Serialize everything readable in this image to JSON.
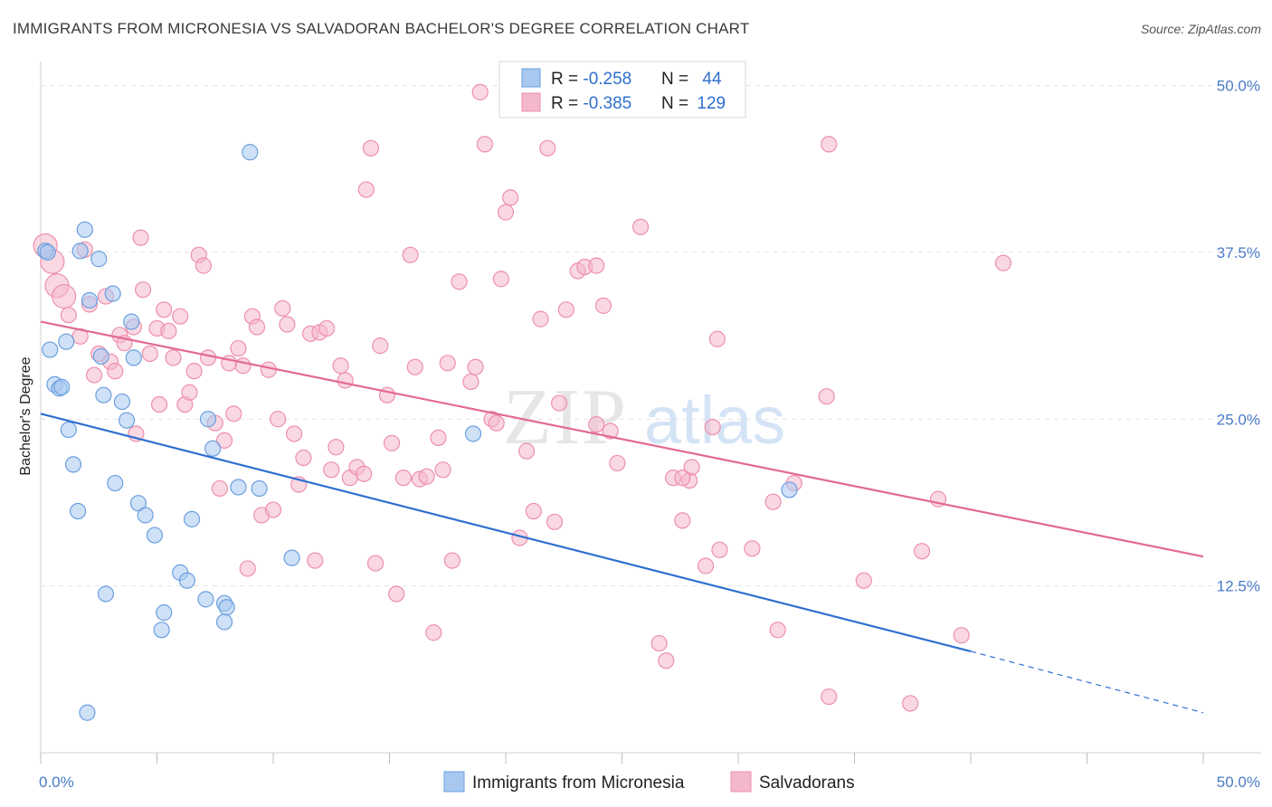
{
  "header": {
    "title": "IMMIGRANTS FROM MICRONESIA VS SALVADORAN BACHELOR'S DEGREE CORRELATION CHART",
    "source": "Source: ZipAtlas.com"
  },
  "watermark": {
    "zip": "ZIP",
    "atlas": "atlas"
  },
  "legend_top": {
    "rows": [
      {
        "r_label": "R = ",
        "r_value": "-0.258",
        "n_label": "N = ",
        "n_value": "44",
        "color": "#a8c8f0"
      },
      {
        "r_label": "R = ",
        "r_value": "-0.385",
        "n_label": "N = ",
        "n_value": "129",
        "color": "#f4b8cb"
      }
    ]
  },
  "legend_bottom": {
    "items": [
      {
        "label": "Immigrants from Micronesia",
        "color": "#a8c8f0"
      },
      {
        "label": "Salvadorans",
        "color": "#f4b8cb"
      }
    ]
  },
  "chart_data": {
    "type": "scatter",
    "title": "IMMIGRANTS FROM MICRONESIA VS SALVADORAN BACHELOR'S DEGREE CORRELATION CHART",
    "xlabel": "",
    "ylabel": "Bachelor's Degree",
    "xlim": [
      0,
      50
    ],
    "ylim": [
      0,
      52
    ],
    "x_tick_labels": [
      "0.0%",
      "50.0%"
    ],
    "y_ticks": [
      12.5,
      25.0,
      37.5,
      50.0
    ],
    "y_tick_labels": [
      "12.5%",
      "25.0%",
      "37.5%",
      "50.0%"
    ],
    "grid": true,
    "legend_position": "top-center",
    "series": [
      {
        "name": "Immigrants from Micronesia",
        "color": "#6a9fe0",
        "fill": "#a8c8f0",
        "trend": {
          "x": [
            0,
            40
          ],
          "y": [
            25.4,
            7.6
          ],
          "dashed_to": [
            50,
            3.0
          ],
          "color": "#2f6fd0"
        },
        "points": [
          [
            0.2,
            37.6
          ],
          [
            0.3,
            37.5
          ],
          [
            0.4,
            30.2
          ],
          [
            0.6,
            27.6
          ],
          [
            0.8,
            27.3
          ],
          [
            0.9,
            27.4
          ],
          [
            1.1,
            30.8
          ],
          [
            1.2,
            24.2
          ],
          [
            1.4,
            21.6
          ],
          [
            1.6,
            18.1
          ],
          [
            1.7,
            37.6
          ],
          [
            1.9,
            39.2
          ],
          [
            2.1,
            33.9
          ],
          [
            2.5,
            37.0
          ],
          [
            2.6,
            29.7
          ],
          [
            2.7,
            26.8
          ],
          [
            2.8,
            11.9
          ],
          [
            3.1,
            34.4
          ],
          [
            3.2,
            20.2
          ],
          [
            3.5,
            26.3
          ],
          [
            3.7,
            24.9
          ],
          [
            3.9,
            32.3
          ],
          [
            4.0,
            29.6
          ],
          [
            4.2,
            18.7
          ],
          [
            4.5,
            17.8
          ],
          [
            4.9,
            16.3
          ],
          [
            5.3,
            10.5
          ],
          [
            5.2,
            9.2
          ],
          [
            6.0,
            13.5
          ],
          [
            6.3,
            12.9
          ],
          [
            6.5,
            17.5
          ],
          [
            7.1,
            11.5
          ],
          [
            7.2,
            25.0
          ],
          [
            7.4,
            22.8
          ],
          [
            7.9,
            11.2
          ],
          [
            7.9,
            9.8
          ],
          [
            8.0,
            10.9
          ],
          [
            8.5,
            19.9
          ],
          [
            9.0,
            45.0
          ],
          [
            9.4,
            19.8
          ],
          [
            10.8,
            14.6
          ],
          [
            18.6,
            23.9
          ],
          [
            32.2,
            19.7
          ],
          [
            2.0,
            3.0
          ]
        ]
      },
      {
        "name": "Salvadorans",
        "color": "#ee8fae",
        "fill": "#f4b8cb",
        "trend": {
          "x": [
            0,
            50
          ],
          "y": [
            32.3,
            14.7
          ],
          "color": "#e26a92"
        },
        "points": [
          [
            0.2,
            38.0
          ],
          [
            0.5,
            36.8
          ],
          [
            0.7,
            35.0
          ],
          [
            1.0,
            34.2
          ],
          [
            1.2,
            32.8
          ],
          [
            1.7,
            31.2
          ],
          [
            1.9,
            37.7
          ],
          [
            2.1,
            33.6
          ],
          [
            2.3,
            28.3
          ],
          [
            2.5,
            29.9
          ],
          [
            2.8,
            34.2
          ],
          [
            3.0,
            29.3
          ],
          [
            3.2,
            28.6
          ],
          [
            3.4,
            31.3
          ],
          [
            3.6,
            30.7
          ],
          [
            4.0,
            31.9
          ],
          [
            4.1,
            23.9
          ],
          [
            4.3,
            38.6
          ],
          [
            4.4,
            34.7
          ],
          [
            4.7,
            29.9
          ],
          [
            5.0,
            31.8
          ],
          [
            5.1,
            26.1
          ],
          [
            5.3,
            33.2
          ],
          [
            5.5,
            31.6
          ],
          [
            5.7,
            29.6
          ],
          [
            6.0,
            32.7
          ],
          [
            6.2,
            26.1
          ],
          [
            6.4,
            27.0
          ],
          [
            6.6,
            28.6
          ],
          [
            6.8,
            37.3
          ],
          [
            7.0,
            36.5
          ],
          [
            7.2,
            29.6
          ],
          [
            7.5,
            24.7
          ],
          [
            7.7,
            19.8
          ],
          [
            7.9,
            23.4
          ],
          [
            8.1,
            29.2
          ],
          [
            8.3,
            25.4
          ],
          [
            8.5,
            30.3
          ],
          [
            8.7,
            29.0
          ],
          [
            8.9,
            13.8
          ],
          [
            9.1,
            32.7
          ],
          [
            9.3,
            31.9
          ],
          [
            9.5,
            17.8
          ],
          [
            9.8,
            28.7
          ],
          [
            10.0,
            18.2
          ],
          [
            10.2,
            25.0
          ],
          [
            10.4,
            33.3
          ],
          [
            10.6,
            32.1
          ],
          [
            10.9,
            23.9
          ],
          [
            11.1,
            20.1
          ],
          [
            11.3,
            22.1
          ],
          [
            11.6,
            31.4
          ],
          [
            11.8,
            14.4
          ],
          [
            12.0,
            31.5
          ],
          [
            12.3,
            31.8
          ],
          [
            12.5,
            21.2
          ],
          [
            12.7,
            22.9
          ],
          [
            12.9,
            29.0
          ],
          [
            13.1,
            27.9
          ],
          [
            13.3,
            20.6
          ],
          [
            13.6,
            21.4
          ],
          [
            13.9,
            20.9
          ],
          [
            14.0,
            42.2
          ],
          [
            14.2,
            45.3
          ],
          [
            14.4,
            14.2
          ],
          [
            14.6,
            30.5
          ],
          [
            14.9,
            26.8
          ],
          [
            15.1,
            23.2
          ],
          [
            15.3,
            11.9
          ],
          [
            15.6,
            20.6
          ],
          [
            15.9,
            37.3
          ],
          [
            16.1,
            28.9
          ],
          [
            16.3,
            20.5
          ],
          [
            16.6,
            20.7
          ],
          [
            16.9,
            9.0
          ],
          [
            17.1,
            23.6
          ],
          [
            17.3,
            21.2
          ],
          [
            17.5,
            29.2
          ],
          [
            17.7,
            14.4
          ],
          [
            18.0,
            35.3
          ],
          [
            18.5,
            27.8
          ],
          [
            18.7,
            28.9
          ],
          [
            18.9,
            49.5
          ],
          [
            19.1,
            45.6
          ],
          [
            19.4,
            25.0
          ],
          [
            19.6,
            24.7
          ],
          [
            19.8,
            35.5
          ],
          [
            20.0,
            40.5
          ],
          [
            20.2,
            41.6
          ],
          [
            20.6,
            16.1
          ],
          [
            20.9,
            22.6
          ],
          [
            21.2,
            18.1
          ],
          [
            21.5,
            32.5
          ],
          [
            21.8,
            45.3
          ],
          [
            22.1,
            17.3
          ],
          [
            22.3,
            26.2
          ],
          [
            22.6,
            33.2
          ],
          [
            23.1,
            36.1
          ],
          [
            23.4,
            36.4
          ],
          [
            23.9,
            24.6
          ],
          [
            23.9,
            36.5
          ],
          [
            24.2,
            33.5
          ],
          [
            24.5,
            24.1
          ],
          [
            24.8,
            21.7
          ],
          [
            25.8,
            39.4
          ],
          [
            26.6,
            8.2
          ],
          [
            26.9,
            6.9
          ],
          [
            27.2,
            20.6
          ],
          [
            27.6,
            17.4
          ],
          [
            27.9,
            20.4
          ],
          [
            28.0,
            21.4
          ],
          [
            28.9,
            24.4
          ],
          [
            27.6,
            20.6
          ],
          [
            28.6,
            14.0
          ],
          [
            29.1,
            31.0
          ],
          [
            29.2,
            15.2
          ],
          [
            30.6,
            15.3
          ],
          [
            31.5,
            18.8
          ],
          [
            31.7,
            9.2
          ],
          [
            32.4,
            20.2
          ],
          [
            33.8,
            26.7
          ],
          [
            33.9,
            45.6
          ],
          [
            33.9,
            4.2
          ],
          [
            35.4,
            12.9
          ],
          [
            37.4,
            3.7
          ],
          [
            37.9,
            15.1
          ],
          [
            38.6,
            19.0
          ],
          [
            39.6,
            8.8
          ],
          [
            41.4,
            36.7
          ]
        ]
      }
    ]
  }
}
